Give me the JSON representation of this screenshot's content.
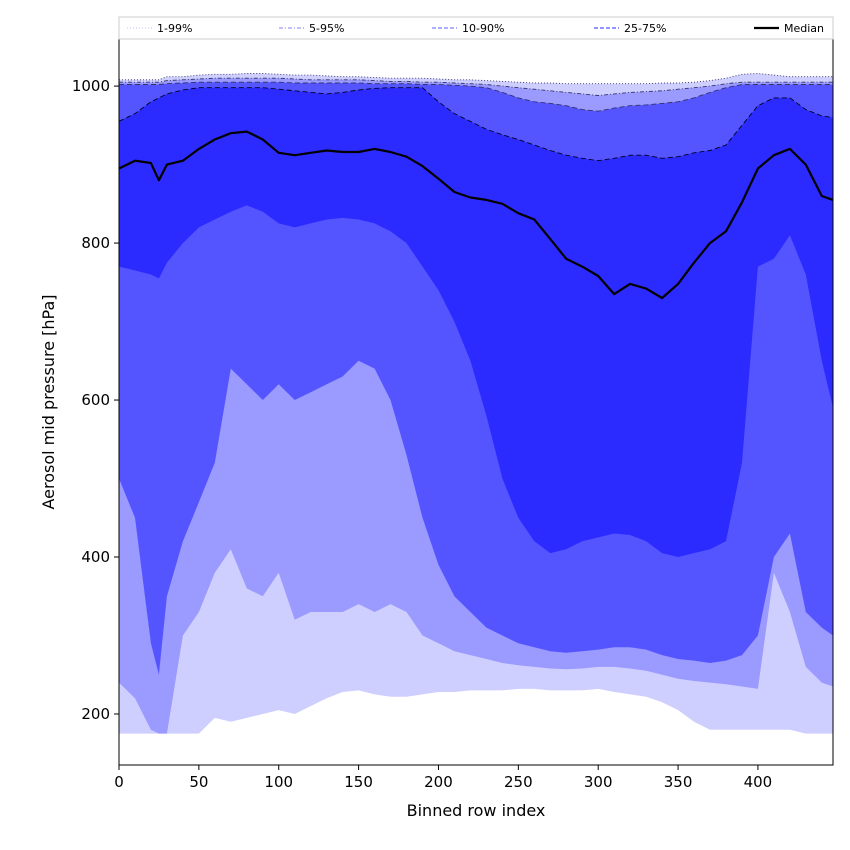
{
  "chart_data": {
    "type": "area",
    "xlabel": "Binned row index",
    "ylabel": "Aerosol mid pressure [hPa]",
    "xlim": [
      0,
      447
    ],
    "ylim": [
      135,
      1060
    ],
    "x_ticks": [
      0,
      50,
      100,
      150,
      200,
      250,
      300,
      350,
      400
    ],
    "y_ticks": [
      200,
      400,
      600,
      800,
      1000
    ],
    "grid": false,
    "legend_position": "top",
    "legend": [
      {
        "label": "1-99%",
        "style": "dotted",
        "color": "#cfcfff"
      },
      {
        "label": "5-95%",
        "style": "dashdot",
        "color": "#9a9aff"
      },
      {
        "label": "10-90%",
        "style": "dashed",
        "color": "#7f7fff"
      },
      {
        "label": "25-75%",
        "style": "dashed",
        "color": "#5555ff"
      },
      {
        "label": "Median",
        "style": "solid",
        "color": "#000000"
      }
    ],
    "x": [
      0,
      10,
      20,
      25,
      30,
      40,
      50,
      60,
      70,
      80,
      90,
      100,
      110,
      120,
      130,
      140,
      150,
      160,
      170,
      180,
      190,
      200,
      210,
      220,
      230,
      240,
      250,
      260,
      270,
      280,
      290,
      300,
      310,
      320,
      330,
      340,
      350,
      360,
      370,
      380,
      390,
      400,
      410,
      420,
      430,
      440,
      447
    ],
    "bands": [
      {
        "name": "1-99%",
        "color": "#cfcfff",
        "lower": [
          175,
          175,
          175,
          175,
          175,
          175,
          175,
          195,
          190,
          195,
          200,
          205,
          200,
          210,
          220,
          228,
          230,
          225,
          222,
          222,
          225,
          228,
          228,
          230,
          230,
          230,
          232,
          232,
          230,
          230,
          230,
          232,
          228,
          225,
          222,
          215,
          205,
          190,
          180,
          180,
          180,
          180,
          180,
          180,
          175,
          175,
          175
        ],
        "upper": [
          1008,
          1008,
          1008,
          1008,
          1012,
          1012,
          1014,
          1015,
          1015,
          1016,
          1016,
          1015,
          1014,
          1014,
          1013,
          1012,
          1012,
          1011,
          1010,
          1010,
          1010,
          1009,
          1008,
          1008,
          1007,
          1006,
          1005,
          1004,
          1004,
          1003,
          1003,
          1003,
          1003,
          1003,
          1003,
          1004,
          1004,
          1005,
          1007,
          1010,
          1015,
          1016,
          1014,
          1012,
          1012,
          1012,
          1012
        ]
      },
      {
        "name": "5-95%",
        "color": "#9a9aff",
        "lower": [
          240,
          220,
          180,
          175,
          175,
          300,
          330,
          380,
          410,
          360,
          350,
          380,
          320,
          330,
          330,
          330,
          340,
          330,
          340,
          330,
          300,
          290,
          280,
          275,
          270,
          265,
          262,
          260,
          258,
          257,
          258,
          260,
          260,
          258,
          255,
          250,
          245,
          242,
          240,
          238,
          235,
          232,
          380,
          330,
          260,
          240,
          235
        ],
        "upper": [
          1005,
          1005,
          1005,
          1005,
          1007,
          1008,
          1009,
          1010,
          1010,
          1010,
          1010,
          1010,
          1009,
          1008,
          1008,
          1008,
          1008,
          1007,
          1006,
          1006,
          1005,
          1005,
          1004,
          1003,
          1002,
          1000,
          998,
          996,
          994,
          992,
          990,
          988,
          990,
          992,
          993,
          994,
          996,
          998,
          1000,
          1003,
          1005,
          1005,
          1005,
          1005,
          1005,
          1005,
          1005
        ]
      },
      {
        "name": "10-90%",
        "color": "#5555ff",
        "lower": [
          500,
          450,
          290,
          250,
          350,
          420,
          470,
          520,
          640,
          620,
          600,
          620,
          600,
          610,
          620,
          630,
          650,
          640,
          600,
          530,
          450,
          390,
          350,
          330,
          310,
          300,
          290,
          285,
          280,
          278,
          280,
          282,
          285,
          285,
          282,
          275,
          270,
          268,
          265,
          268,
          275,
          300,
          400,
          430,
          330,
          310,
          300
        ],
        "upper": [
          1002,
          1002,
          1002,
          1002,
          1003,
          1004,
          1005,
          1005,
          1005,
          1005,
          1005,
          1005,
          1004,
          1004,
          1004,
          1004,
          1004,
          1003,
          1003,
          1003,
          1002,
          1002,
          1001,
          1000,
          998,
          992,
          985,
          980,
          978,
          975,
          970,
          968,
          972,
          975,
          976,
          978,
          980,
          985,
          992,
          998,
          1002,
          1002,
          1002,
          1002,
          1002,
          1002,
          1002
        ]
      },
      {
        "name": "25-75%",
        "color": "#2b2bff",
        "lower": [
          770,
          765,
          760,
          755,
          775,
          800,
          820,
          830,
          840,
          848,
          840,
          825,
          820,
          825,
          830,
          832,
          830,
          825,
          815,
          800,
          770,
          740,
          700,
          650,
          580,
          500,
          450,
          420,
          405,
          410,
          420,
          425,
          430,
          428,
          420,
          405,
          400,
          405,
          410,
          420,
          520,
          770,
          780,
          810,
          760,
          650,
          590
        ],
        "upper": [
          955,
          965,
          980,
          985,
          990,
          995,
          998,
          998,
          998,
          998,
          998,
          996,
          994,
          992,
          990,
          992,
          995,
          997,
          998,
          998,
          998,
          980,
          965,
          955,
          945,
          938,
          932,
          925,
          918,
          912,
          908,
          905,
          908,
          912,
          912,
          908,
          910,
          915,
          918,
          925,
          950,
          975,
          985,
          985,
          970,
          962,
          960
        ]
      }
    ],
    "series": [
      {
        "name": "Median",
        "color": "#000000",
        "values": [
          895,
          905,
          902,
          880,
          900,
          905,
          920,
          932,
          940,
          942,
          932,
          915,
          912,
          915,
          918,
          916,
          916,
          920,
          916,
          910,
          898,
          882,
          865,
          858,
          855,
          850,
          838,
          830,
          805,
          780,
          770,
          758,
          735,
          748,
          742,
          730,
          748,
          775,
          800,
          815,
          852,
          895,
          912,
          920,
          900,
          860,
          855
        ]
      }
    ]
  }
}
